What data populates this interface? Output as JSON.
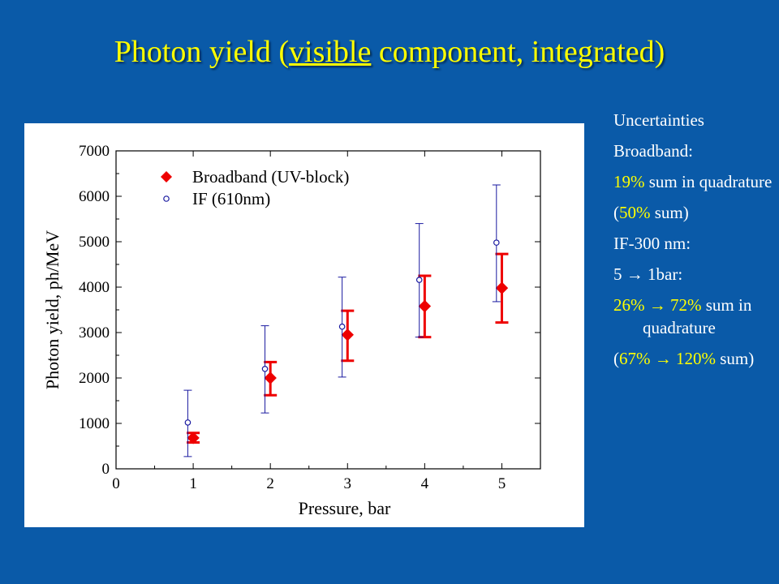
{
  "slide": {
    "title_pre": "Photon yield (",
    "title_underlined": "visible",
    "title_post": " component, integrated)"
  },
  "notes": {
    "heading": "Uncertainties",
    "broadband_label": "Broadband:",
    "broadband_pct": "19%",
    "broadband_text": " sum in quadrature",
    "broadband_sum_open": "(",
    "broadband_sum_pct": "50%",
    "broadband_sum_close": " sum)",
    "if_label": "IF-300 nm:",
    "if_pressure": "5 → 1bar:",
    "if_pct": "26% → 72%",
    "if_text": " sum in quadrature",
    "if_sum_open": "(",
    "if_sum_pct": "67% → 120%",
    "if_sum_close": " sum)"
  },
  "colors": {
    "background": "#0a5aa8",
    "title": "#ffff00",
    "broadband": "#ee0000",
    "if": "#1a1aa0"
  },
  "chart_data": {
    "type": "scatter",
    "xlabel": "Pressure, bar",
    "ylabel": "Photon yield, ph/MeV",
    "xlim": [
      0,
      5.5
    ],
    "ylim": [
      0,
      7000
    ],
    "xticks": [
      0,
      1,
      2,
      3,
      4,
      5
    ],
    "yticks": [
      0,
      1000,
      2000,
      3000,
      4000,
      5000,
      6000,
      7000
    ],
    "legend_position": "top-left",
    "grid": false,
    "series": [
      {
        "name": "Broadband (UV-block)",
        "marker": "diamond",
        "color": "#ee0000",
        "x": [
          1,
          2,
          3,
          4,
          5
        ],
        "y": [
          680,
          2000,
          2950,
          3580,
          3980
        ],
        "err_low": [
          580,
          1620,
          2380,
          2900,
          3220
        ],
        "err_high": [
          790,
          2350,
          3480,
          4250,
          4730
        ]
      },
      {
        "name": "IF (610nm)",
        "marker": "circle",
        "color": "#1a1aa0",
        "x": [
          0.93,
          1.93,
          2.93,
          3.93,
          4.93
        ],
        "y": [
          1020,
          2200,
          3130,
          4160,
          4980
        ],
        "err_low": [
          270,
          1230,
          2020,
          2900,
          3680
        ],
        "err_high": [
          1730,
          3150,
          4220,
          5400,
          6250
        ]
      }
    ]
  }
}
